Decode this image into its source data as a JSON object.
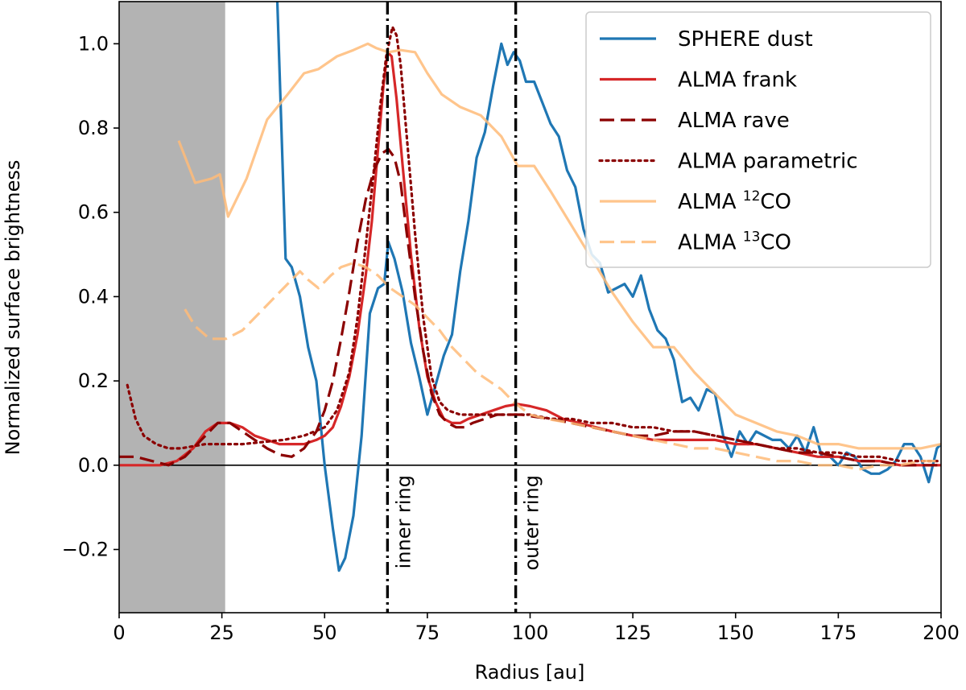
{
  "chart_data": {
    "type": "line",
    "title": "",
    "xlabel": "Radius [au]",
    "ylabel": "Normalized surface brightness",
    "xlim": [
      0,
      200
    ],
    "ylim": [
      -0.35,
      1.1
    ],
    "xticks": [
      0,
      25,
      50,
      75,
      100,
      125,
      150,
      175,
      200
    ],
    "yticks": [
      -0.2,
      0.0,
      0.2,
      0.4,
      0.6,
      0.8,
      1.0
    ],
    "ytick_labels": [
      "−0.2",
      "0.0",
      "0.2",
      "0.4",
      "0.6",
      "0.8",
      "1.0"
    ],
    "grid": false,
    "legend_position": "top-right",
    "shaded_region": {
      "x_from": 0,
      "x_to": 25.8,
      "color": "#b3b3b3"
    },
    "zero_line": {
      "y": 0,
      "color": "#000000"
    },
    "vlines": [
      {
        "x": 65.3,
        "label": "inner ring"
      },
      {
        "x": 96.5,
        "label": "outer ring"
      }
    ],
    "series": [
      {
        "name": "SPHERE dust",
        "name_main": "SPHERE dust",
        "color": "#1f77b4",
        "dash": "solid",
        "opacity": 1,
        "x": [
          38.5,
          40.5,
          42,
          44,
          46,
          48,
          50,
          52,
          53.5,
          55,
          57,
          59,
          61,
          63,
          64.5,
          65.5,
          67,
          69,
          71,
          73,
          75,
          77,
          79,
          81,
          83,
          85,
          87,
          89,
          91,
          93,
          94.5,
          96,
          97.5,
          99,
          101,
          103,
          105,
          107,
          109,
          111,
          113,
          115,
          117,
          119,
          121,
          123,
          125,
          127,
          129,
          131,
          133,
          135,
          137,
          139,
          141,
          143,
          145,
          147,
          149,
          151,
          153,
          155,
          157,
          159,
          161,
          163,
          165,
          167,
          169,
          171,
          173,
          175,
          177,
          179,
          181,
          183,
          185,
          187,
          189,
          191,
          193,
          195,
          197,
          199,
          200
        ],
        "y": [
          1.1,
          0.49,
          0.47,
          0.4,
          0.28,
          0.2,
          0.0,
          -0.15,
          -0.25,
          -0.22,
          -0.12,
          0.07,
          0.36,
          0.42,
          0.43,
          0.53,
          0.49,
          0.41,
          0.29,
          0.21,
          0.12,
          0.19,
          0.26,
          0.31,
          0.46,
          0.58,
          0.73,
          0.79,
          0.9,
          1.0,
          0.95,
          0.98,
          0.96,
          0.91,
          0.91,
          0.86,
          0.81,
          0.78,
          0.7,
          0.66,
          0.56,
          0.5,
          0.48,
          0.41,
          0.42,
          0.43,
          0.4,
          0.45,
          0.37,
          0.32,
          0.3,
          0.25,
          0.15,
          0.16,
          0.13,
          0.18,
          0.17,
          0.07,
          0.02,
          0.08,
          0.05,
          0.08,
          0.07,
          0.06,
          0.06,
          0.04,
          0.07,
          0.03,
          0.09,
          0.02,
          0.02,
          0.0,
          0.03,
          0.02,
          -0.01,
          -0.02,
          -0.02,
          -0.01,
          0.01,
          0.05,
          0.05,
          0.02,
          -0.04,
          0.04,
          0.05
        ]
      },
      {
        "name": "ALMA frank",
        "name_main": "ALMA frank",
        "color": "#d62728",
        "dash": "solid",
        "opacity": 1,
        "x": [
          0,
          5,
          10,
          14,
          18,
          21,
          24,
          27,
          30,
          33,
          36,
          39,
          42,
          45,
          48,
          50,
          52,
          54,
          56,
          58,
          60,
          61.5,
          63,
          64.3,
          65.3,
          66.3,
          67.5,
          69,
          71,
          73,
          75,
          77,
          79,
          81,
          83,
          85,
          88,
          91,
          94,
          97,
          100,
          104,
          108,
          112,
          116,
          120,
          125,
          130,
          135,
          140,
          145,
          150,
          155,
          160,
          165,
          170,
          175,
          180,
          185,
          190,
          195,
          200
        ],
        "y": [
          0.0,
          0.0,
          0.0,
          0.01,
          0.04,
          0.08,
          0.1,
          0.1,
          0.09,
          0.07,
          0.06,
          0.05,
          0.05,
          0.05,
          0.06,
          0.07,
          0.09,
          0.14,
          0.21,
          0.31,
          0.45,
          0.58,
          0.75,
          0.9,
          0.98,
          0.97,
          0.87,
          0.71,
          0.5,
          0.33,
          0.21,
          0.15,
          0.11,
          0.1,
          0.1,
          0.11,
          0.12,
          0.13,
          0.14,
          0.145,
          0.14,
          0.13,
          0.11,
          0.1,
          0.09,
          0.08,
          0.07,
          0.06,
          0.06,
          0.06,
          0.06,
          0.05,
          0.05,
          0.04,
          0.03,
          0.02,
          0.02,
          0.01,
          0.01,
          0.0,
          0.0,
          0.0
        ]
      },
      {
        "name": "ALMA rave",
        "name_main": "ALMA rave",
        "color": "#8b0000",
        "dash": "dashed",
        "opacity": 1,
        "x": [
          0,
          4,
          8,
          12,
          16,
          20,
          24,
          27,
          30,
          33,
          36,
          39,
          42,
          45,
          48,
          50,
          52,
          54,
          56,
          58,
          60,
          62,
          64,
          65.5,
          67,
          68.5,
          70,
          72,
          74,
          76,
          78,
          80,
          82,
          84,
          86,
          89,
          92,
          95,
          98,
          101,
          105,
          110,
          115,
          120,
          125,
          130,
          135,
          140,
          145,
          150,
          155,
          160,
          165,
          170,
          175,
          180,
          185,
          190,
          195,
          200
        ],
        "y": [
          0.02,
          0.02,
          0.01,
          0.0,
          0.02,
          0.06,
          0.1,
          0.1,
          0.08,
          0.06,
          0.04,
          0.025,
          0.02,
          0.04,
          0.08,
          0.13,
          0.2,
          0.3,
          0.41,
          0.53,
          0.63,
          0.7,
          0.74,
          0.75,
          0.73,
          0.67,
          0.55,
          0.4,
          0.27,
          0.17,
          0.12,
          0.1,
          0.09,
          0.09,
          0.1,
          0.11,
          0.12,
          0.12,
          0.12,
          0.115,
          0.11,
          0.1,
          0.09,
          0.08,
          0.07,
          0.07,
          0.08,
          0.08,
          0.07,
          0.06,
          0.05,
          0.04,
          0.03,
          0.03,
          0.02,
          0.01,
          0.01,
          0.0,
          0.0,
          0.0
        ]
      },
      {
        "name": "ALMA parametric",
        "name_main": "ALMA parametric",
        "color": "#8b0000",
        "dash": "dotted",
        "opacity": 1,
        "x": [
          2,
          4,
          6,
          9,
          12,
          15,
          18,
          21,
          24,
          27,
          30,
          35,
          40,
          45,
          50,
          53,
          56,
          58,
          60,
          62,
          63.5,
          65,
          66.5,
          67.5,
          68.5,
          70,
          72,
          74,
          76,
          78,
          80,
          83,
          86,
          90,
          95,
          100,
          105,
          110,
          115,
          120,
          125,
          130,
          135,
          140,
          145,
          150,
          155,
          160,
          165,
          170,
          175,
          180,
          185,
          190,
          195,
          200
        ],
        "y": [
          0.19,
          0.11,
          0.07,
          0.05,
          0.04,
          0.04,
          0.045,
          0.05,
          0.05,
          0.05,
          0.05,
          0.055,
          0.06,
          0.07,
          0.09,
          0.13,
          0.22,
          0.35,
          0.52,
          0.7,
          0.85,
          0.97,
          1.04,
          1.02,
          0.95,
          0.78,
          0.55,
          0.35,
          0.21,
          0.15,
          0.13,
          0.12,
          0.12,
          0.12,
          0.12,
          0.12,
          0.11,
          0.11,
          0.1,
          0.1,
          0.09,
          0.09,
          0.08,
          0.08,
          0.07,
          0.06,
          0.05,
          0.04,
          0.04,
          0.03,
          0.03,
          0.02,
          0.02,
          0.01,
          0.01,
          0.01
        ]
      },
      {
        "name": "ALMA 12CO",
        "name_main": "ALMA ",
        "name_sup": "12",
        "name_tail": "CO",
        "color": "#ffbb78",
        "dash": "solid",
        "opacity": 0.85,
        "x": [
          14.5,
          18.5,
          22.5,
          24.5,
          26.5,
          31,
          36,
          41,
          45,
          48.5,
          53,
          57,
          60.5,
          62.5,
          65.5,
          68.5,
          72,
          75,
          78.5,
          83,
          88,
          93,
          97,
          101,
          105,
          110,
          115,
          120,
          125,
          130,
          135,
          140,
          145,
          150,
          155,
          160,
          165,
          170,
          175,
          180,
          185,
          190,
          195,
          200
        ],
        "y": [
          0.77,
          0.67,
          0.68,
          0.69,
          0.59,
          0.68,
          0.82,
          0.88,
          0.93,
          0.94,
          0.97,
          0.985,
          1.0,
          0.99,
          0.98,
          0.985,
          0.98,
          0.93,
          0.88,
          0.85,
          0.83,
          0.78,
          0.71,
          0.71,
          0.65,
          0.57,
          0.49,
          0.41,
          0.34,
          0.28,
          0.28,
          0.22,
          0.17,
          0.12,
          0.1,
          0.08,
          0.07,
          0.05,
          0.05,
          0.04,
          0.04,
          0.04,
          0.04,
          0.05
        ]
      },
      {
        "name": "ALMA 13CO",
        "name_main": "ALMA ",
        "name_sup": "13",
        "name_tail": "CO",
        "color": "#ffbb78",
        "dash": "dashed",
        "opacity": 0.85,
        "x": [
          16,
          18.5,
          22,
          26,
          30,
          34,
          38,
          42,
          44,
          46,
          48.5,
          51.5,
          54,
          57,
          60,
          63,
          66,
          69,
          72,
          75,
          78,
          81,
          84,
          87,
          90,
          93,
          96,
          100,
          104,
          110,
          115,
          120,
          125,
          130,
          135,
          140,
          145,
          150,
          155,
          160,
          165,
          170,
          175,
          180,
          185,
          190,
          195,
          200
        ],
        "y": [
          0.37,
          0.33,
          0.3,
          0.3,
          0.32,
          0.36,
          0.4,
          0.44,
          0.46,
          0.44,
          0.42,
          0.45,
          0.47,
          0.48,
          0.47,
          0.45,
          0.42,
          0.4,
          0.38,
          0.35,
          0.32,
          0.28,
          0.25,
          0.22,
          0.2,
          0.18,
          0.15,
          0.12,
          0.11,
          0.1,
          0.09,
          0.08,
          0.07,
          0.06,
          0.05,
          0.04,
          0.04,
          0.03,
          0.02,
          0.01,
          0.01,
          0.0,
          0.0,
          -0.01,
          0.0,
          0.0,
          0.01,
          0.01
        ]
      }
    ]
  }
}
